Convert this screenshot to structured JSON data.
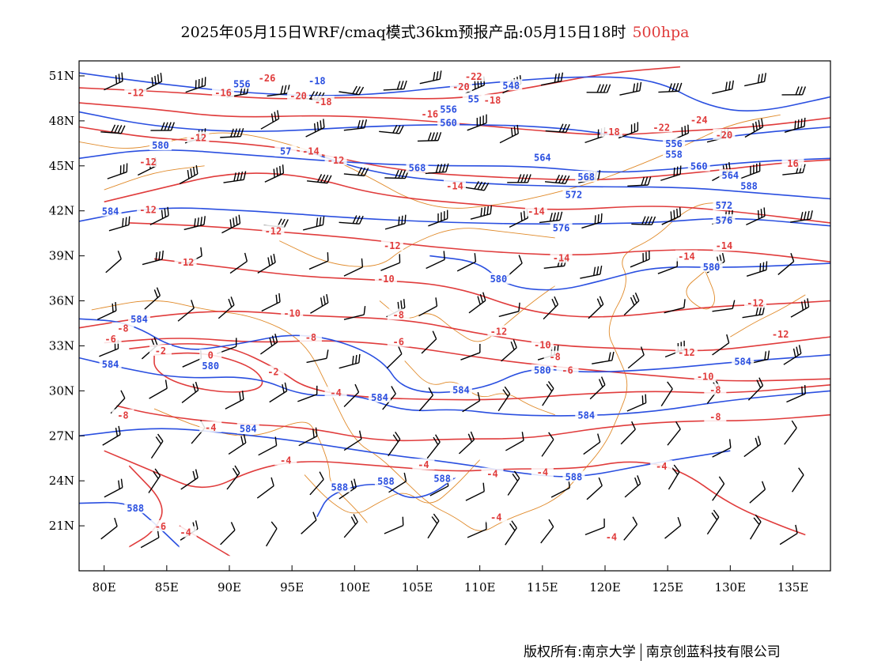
{
  "title": {
    "main": "2025年05月15日WRF/cmaq模式36km预报产品:05月15日18时",
    "level": "500hpa"
  },
  "colors": {
    "height_contour": "#2a4fe0",
    "temperature_contour": "#e03c3c",
    "boundary": "#e08a2a",
    "wind_barb": "#000000"
  },
  "icons": {
    "wind": "wind-barb-icon"
  },
  "map": {
    "lon_range": [
      78,
      138
    ],
    "lat_range": [
      18,
      52
    ],
    "lon_ticks": [
      "80E",
      "85E",
      "90E",
      "95E",
      "100E",
      "105E",
      "110E",
      "115E",
      "120E",
      "125E",
      "130E",
      "135E"
    ],
    "lat_ticks": [
      "51N",
      "48N",
      "45N",
      "42N",
      "39N",
      "36N",
      "33N",
      "30N",
      "27N",
      "24N",
      "21N"
    ],
    "contour_labels": [
      {
        "text": "-26",
        "lon": 93,
        "lat": 50.8,
        "color": "red"
      },
      {
        "text": "-18",
        "lon": 97,
        "lat": 50.6,
        "color": "blue"
      },
      {
        "text": "-22",
        "lon": 109.5,
        "lat": 50.9,
        "color": "red"
      },
      {
        "text": "-20",
        "lon": 108.5,
        "lat": 50.2,
        "color": "red"
      },
      {
        "text": "548",
        "lon": 112.5,
        "lat": 50.3,
        "color": "blue"
      },
      {
        "text": "556",
        "lon": 91,
        "lat": 50.4,
        "color": "blue"
      },
      {
        "text": "-12",
        "lon": 82.5,
        "lat": 49.8,
        "color": "red"
      },
      {
        "text": "-16",
        "lon": 89.5,
        "lat": 49.8,
        "color": "red"
      },
      {
        "text": "-20",
        "lon": 95.5,
        "lat": 49.6,
        "color": "red"
      },
      {
        "text": "-18",
        "lon": 97.5,
        "lat": 49.2,
        "color": "red"
      },
      {
        "text": "-18",
        "lon": 111,
        "lat": 49.3,
        "color": "red"
      },
      {
        "text": "55",
        "lon": 109.5,
        "lat": 49.4,
        "color": "blue"
      },
      {
        "text": "556",
        "lon": 107.5,
        "lat": 48.7,
        "color": "blue"
      },
      {
        "text": "-16",
        "lon": 106,
        "lat": 48.4,
        "color": "red"
      },
      {
        "text": "560",
        "lon": 107.5,
        "lat": 47.8,
        "color": "blue"
      },
      {
        "text": "-12",
        "lon": 87.5,
        "lat": 46.8,
        "color": "red"
      },
      {
        "text": "-18",
        "lon": 120.5,
        "lat": 47.2,
        "color": "red"
      },
      {
        "text": "-22",
        "lon": 124.5,
        "lat": 47.5,
        "color": "red"
      },
      {
        "text": "-24",
        "lon": 127.5,
        "lat": 48.0,
        "color": "red"
      },
      {
        "text": "-20",
        "lon": 129.5,
        "lat": 47.0,
        "color": "red"
      },
      {
        "text": "556",
        "lon": 125.5,
        "lat": 46.4,
        "color": "blue"
      },
      {
        "text": "558",
        "lon": 125.5,
        "lat": 45.7,
        "color": "blue"
      },
      {
        "text": "580",
        "lon": 84.5,
        "lat": 46.3,
        "color": "blue"
      },
      {
        "text": "57",
        "lon": 94.5,
        "lat": 45.9,
        "color": "blue"
      },
      {
        "text": "-14",
        "lon": 96.5,
        "lat": 45.9,
        "color": "red"
      },
      {
        "text": "-12",
        "lon": 98.5,
        "lat": 45.3,
        "color": "red"
      },
      {
        "text": "-12",
        "lon": 83.5,
        "lat": 45.2,
        "color": "red"
      },
      {
        "text": "564",
        "lon": 115,
        "lat": 45.5,
        "color": "blue"
      },
      {
        "text": "568",
        "lon": 105,
        "lat": 44.8,
        "color": "blue"
      },
      {
        "text": "560",
        "lon": 127.5,
        "lat": 44.9,
        "color": "blue"
      },
      {
        "text": "16",
        "lon": 135,
        "lat": 45.1,
        "color": "red"
      },
      {
        "text": "568",
        "lon": 118.5,
        "lat": 44.2,
        "color": "blue"
      },
      {
        "text": "564",
        "lon": 130,
        "lat": 44.3,
        "color": "blue"
      },
      {
        "text": "-14",
        "lon": 108,
        "lat": 43.6,
        "color": "red"
      },
      {
        "text": "588",
        "lon": 131.5,
        "lat": 43.6,
        "color": "blue"
      },
      {
        "text": "572",
        "lon": 117.5,
        "lat": 43.0,
        "color": "blue"
      },
      {
        "text": "584",
        "lon": 80.5,
        "lat": 41.9,
        "color": "blue"
      },
      {
        "text": "-12",
        "lon": 83.5,
        "lat": 42.0,
        "color": "red"
      },
      {
        "text": "-14",
        "lon": 114.5,
        "lat": 41.9,
        "color": "red"
      },
      {
        "text": "572",
        "lon": 129.5,
        "lat": 42.3,
        "color": "blue"
      },
      {
        "text": "576",
        "lon": 129.5,
        "lat": 41.3,
        "color": "blue"
      },
      {
        "text": "576",
        "lon": 116.5,
        "lat": 40.8,
        "color": "blue"
      },
      {
        "text": "-12",
        "lon": 93.5,
        "lat": 40.6,
        "color": "red"
      },
      {
        "text": "-12",
        "lon": 103,
        "lat": 39.6,
        "color": "red"
      },
      {
        "text": "-14",
        "lon": 129.5,
        "lat": 39.6,
        "color": "red"
      },
      {
        "text": "-14",
        "lon": 126.5,
        "lat": 38.9,
        "color": "red"
      },
      {
        "text": "-14",
        "lon": 116.5,
        "lat": 38.8,
        "color": "red"
      },
      {
        "text": "-12",
        "lon": 86.5,
        "lat": 38.5,
        "color": "red"
      },
      {
        "text": "580",
        "lon": 128.5,
        "lat": 38.2,
        "color": "blue"
      },
      {
        "text": "-10",
        "lon": 102.5,
        "lat": 37.4,
        "color": "red"
      },
      {
        "text": "580",
        "lon": 111.5,
        "lat": 37.4,
        "color": "blue"
      },
      {
        "text": "-12",
        "lon": 132,
        "lat": 35.8,
        "color": "red"
      },
      {
        "text": "-10",
        "lon": 95,
        "lat": 35.1,
        "color": "red"
      },
      {
        "text": "-8",
        "lon": 103.5,
        "lat": 35.0,
        "color": "red"
      },
      {
        "text": "584",
        "lon": 82.8,
        "lat": 34.7,
        "color": "blue"
      },
      {
        "text": "-8",
        "lon": 81.5,
        "lat": 34.1,
        "color": "red"
      },
      {
        "text": "-8",
        "lon": 96.5,
        "lat": 33.5,
        "color": "red"
      },
      {
        "text": "-12",
        "lon": 111.5,
        "lat": 33.9,
        "color": "red"
      },
      {
        "text": "-12",
        "lon": 134,
        "lat": 33.7,
        "color": "red"
      },
      {
        "text": "-6",
        "lon": 80.5,
        "lat": 33.4,
        "color": "red"
      },
      {
        "text": "-6",
        "lon": 103.5,
        "lat": 33.2,
        "color": "red"
      },
      {
        "text": "-10",
        "lon": 115,
        "lat": 33.0,
        "color": "red"
      },
      {
        "text": "-8",
        "lon": 116,
        "lat": 32.2,
        "color": "red"
      },
      {
        "text": "-12",
        "lon": 126.5,
        "lat": 32.5,
        "color": "red"
      },
      {
        "text": "-2",
        "lon": 84.5,
        "lat": 32.6,
        "color": "red"
      },
      {
        "text": "0",
        "lon": 88.5,
        "lat": 32.3,
        "color": "red"
      },
      {
        "text": "584",
        "lon": 80.5,
        "lat": 31.7,
        "color": "blue"
      },
      {
        "text": "580",
        "lon": 88.5,
        "lat": 31.6,
        "color": "blue"
      },
      {
        "text": "584",
        "lon": 131,
        "lat": 31.9,
        "color": "blue"
      },
      {
        "text": "-2",
        "lon": 93.5,
        "lat": 31.2,
        "color": "red"
      },
      {
        "text": "580",
        "lon": 115,
        "lat": 31.3,
        "color": "blue"
      },
      {
        "text": "-6",
        "lon": 117,
        "lat": 31.3,
        "color": "red"
      },
      {
        "text": "-10",
        "lon": 128,
        "lat": 30.9,
        "color": "red"
      },
      {
        "text": "-8",
        "lon": 128.8,
        "lat": 30.0,
        "color": "red"
      },
      {
        "text": "-4",
        "lon": 98.5,
        "lat": 29.8,
        "color": "red"
      },
      {
        "text": "584",
        "lon": 102,
        "lat": 29.5,
        "color": "blue"
      },
      {
        "text": "584",
        "lon": 108.5,
        "lat": 30.0,
        "color": "blue"
      },
      {
        "text": "-8",
        "lon": 81.5,
        "lat": 28.3,
        "color": "red"
      },
      {
        "text": "584",
        "lon": 118.5,
        "lat": 28.3,
        "color": "blue"
      },
      {
        "text": "-8",
        "lon": 128.8,
        "lat": 28.2,
        "color": "red"
      },
      {
        "text": "-4",
        "lon": 88.5,
        "lat": 27.5,
        "color": "red"
      },
      {
        "text": "584",
        "lon": 91.5,
        "lat": 27.4,
        "color": "blue"
      },
      {
        "text": "-4",
        "lon": 94.5,
        "lat": 25.3,
        "color": "red"
      },
      {
        "text": "-4",
        "lon": 105.5,
        "lat": 25.0,
        "color": "red"
      },
      {
        "text": "-4",
        "lon": 124.5,
        "lat": 24.9,
        "color": "red"
      },
      {
        "text": "-4",
        "lon": 111,
        "lat": 24.4,
        "color": "red"
      },
      {
        "text": "-4",
        "lon": 115,
        "lat": 24.5,
        "color": "red"
      },
      {
        "text": "588",
        "lon": 117.5,
        "lat": 24.2,
        "color": "blue"
      },
      {
        "text": "588",
        "lon": 98.8,
        "lat": 23.5,
        "color": "blue"
      },
      {
        "text": "588",
        "lon": 102.5,
        "lat": 23.9,
        "color": "blue"
      },
      {
        "text": "588",
        "lon": 107,
        "lat": 24.1,
        "color": "blue"
      },
      {
        "text": "588",
        "lon": 82.5,
        "lat": 22.1,
        "color": "blue"
      },
      {
        "text": "-4",
        "lon": 111.3,
        "lat": 21.5,
        "color": "red"
      },
      {
        "text": "-6",
        "lon": 84.5,
        "lat": 20.9,
        "color": "red"
      },
      {
        "text": "-4",
        "lon": 86.5,
        "lat": 20.5,
        "color": "red"
      },
      {
        "text": "-4",
        "lon": 120.5,
        "lat": 20.2,
        "color": "red"
      }
    ]
  },
  "footer": {
    "copyright": "版权所有:南京大学",
    "company": "南京创蓝科技有限公司"
  }
}
